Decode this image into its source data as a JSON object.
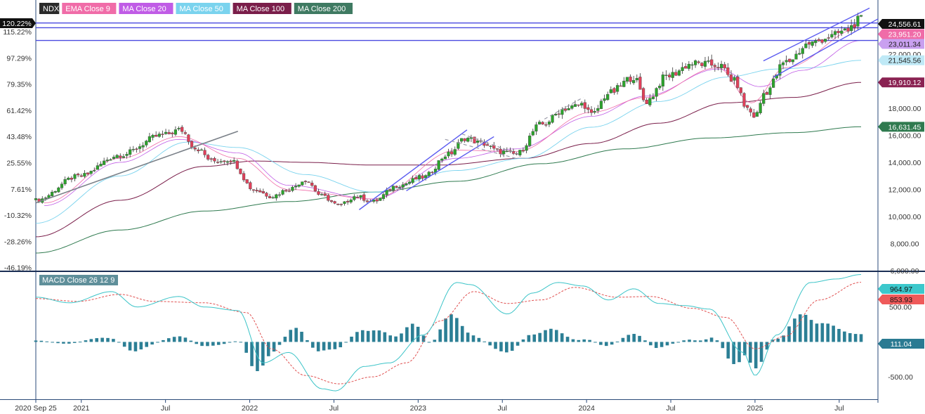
{
  "chart_data": {
    "type": "candlestick",
    "symbol": "NDX",
    "legend": [
      {
        "label": "NDX",
        "color": "#2b2b2b"
      },
      {
        "label": "EMA Close 9",
        "color": "#f06ca8"
      },
      {
        "label": "MA Close 20",
        "color": "#c05ce6"
      },
      {
        "label": "MA Close 50",
        "color": "#7ad3ee"
      },
      {
        "label": "MA Close 100",
        "color": "#7a1e4a"
      },
      {
        "label": "MA Close 200",
        "color": "#3f7a62"
      }
    ],
    "x_labels": [
      "2020 Sep 25",
      "2021",
      "Jul",
      "2022",
      "Jul",
      "2023",
      "Jul",
      "2024",
      "Jul",
      "2025",
      "Jul"
    ],
    "price_axis": {
      "ticks": [
        "6,000.00",
        "8,000.00",
        "10,000.00",
        "12,000.00",
        "14,000.00",
        "16,000.00",
        "18,000.00",
        "22,000.00"
      ],
      "range": [
        6000,
        26000
      ]
    },
    "percent_axis": {
      "ticks": [
        "115.22%",
        "97.29%",
        "79.35%",
        "61.42%",
        "43.48%",
        "25.55%",
        "7.61%",
        "-10.32%",
        "-28.26%",
        "-46.19%"
      ],
      "current": "120.22%"
    },
    "price_markers": [
      {
        "label": "24,556.61",
        "series": "Close",
        "bg": "#111111",
        "fg": "#ffffff"
      },
      {
        "label": "23,951.20",
        "series": "EMA Close 9",
        "bg": "#f06ca8",
        "fg": "#ffffff"
      },
      {
        "label": "23,011.34",
        "series": "MA Close 20",
        "bg": "#c9a0f0",
        "fg": "#222222"
      },
      {
        "label": "21,545.56",
        "series": "MA Close 50",
        "bg": "#bfe9f6",
        "fg": "#222222"
      },
      {
        "label": "19,910.12",
        "series": "MA Close 100",
        "bg": "#8a2252",
        "fg": "#ffffff"
      },
      {
        "label": "16,631.45",
        "series": "MA Close 200",
        "bg": "#2f7a4f",
        "fg": "#ffffff"
      }
    ],
    "horizontal_levels": [
      24300,
      23951.2,
      23011.34
    ],
    "close_anchors": [
      {
        "t": 0.0,
        "v": 11200
      },
      {
        "t": 0.25,
        "v": 12950
      },
      {
        "t": 0.5,
        "v": 14550
      },
      {
        "t": 0.75,
        "v": 16000
      },
      {
        "t": 0.86,
        "v": 16400
      },
      {
        "t": 0.95,
        "v": 15050
      },
      {
        "t": 1.05,
        "v": 14100
      },
      {
        "t": 1.15,
        "v": 14200
      },
      {
        "t": 1.3,
        "v": 11950
      },
      {
        "t": 1.4,
        "v": 11500
      },
      {
        "t": 1.5,
        "v": 12000
      },
      {
        "t": 1.6,
        "v": 12700
      },
      {
        "t": 1.7,
        "v": 11500
      },
      {
        "t": 1.8,
        "v": 10800
      },
      {
        "t": 1.9,
        "v": 11500
      },
      {
        "t": 2.0,
        "v": 11100
      },
      {
        "t": 2.15,
        "v": 12300
      },
      {
        "t": 2.3,
        "v": 12900
      },
      {
        "t": 2.45,
        "v": 14600
      },
      {
        "t": 2.55,
        "v": 15800
      },
      {
        "t": 2.65,
        "v": 15400
      },
      {
        "t": 2.75,
        "v": 14800
      },
      {
        "t": 2.85,
        "v": 14600
      },
      {
        "t": 3.0,
        "v": 16800
      },
      {
        "t": 3.15,
        "v": 18000
      },
      {
        "t": 3.25,
        "v": 18300
      },
      {
        "t": 3.3,
        "v": 17500
      },
      {
        "t": 3.4,
        "v": 19100
      },
      {
        "t": 3.55,
        "v": 20300
      },
      {
        "t": 3.62,
        "v": 18500
      },
      {
        "t": 3.75,
        "v": 20400
      },
      {
        "t": 3.9,
        "v": 21300
      },
      {
        "t": 4.05,
        "v": 21200
      },
      {
        "t": 4.15,
        "v": 20000
      },
      {
        "t": 4.22,
        "v": 18000
      },
      {
        "t": 4.27,
        "v": 17400
      },
      {
        "t": 4.33,
        "v": 19200
      },
      {
        "t": 4.45,
        "v": 21400
      },
      {
        "t": 4.6,
        "v": 22800
      },
      {
        "t": 4.72,
        "v": 23300
      },
      {
        "t": 4.8,
        "v": 23700
      },
      {
        "t": 4.9,
        "v": 24556.61
      }
    ],
    "ma_curves": {
      "EMA Close 9": {
        "color": "#f06ca8",
        "width": 0.8,
        "pts": [
          [
            0.05,
            11000
          ],
          [
            0.5,
            14300
          ],
          [
            0.85,
            15900
          ],
          [
            1.2,
            14300
          ],
          [
            1.5,
            12000
          ],
          [
            2.0,
            11300
          ],
          [
            2.5,
            14900
          ],
          [
            2.85,
            14800
          ],
          [
            3.3,
            17700
          ],
          [
            3.62,
            18800
          ],
          [
            4.05,
            21000
          ],
          [
            4.25,
            18400
          ],
          [
            4.45,
            21000
          ],
          [
            4.9,
            23951
          ]
        ]
      },
      "MA Close 20": {
        "color": "#c05ce6",
        "width": 0.8,
        "pts": [
          [
            0.05,
            10800
          ],
          [
            0.5,
            14000
          ],
          [
            0.85,
            15700
          ],
          [
            1.2,
            14700
          ],
          [
            1.5,
            12300
          ],
          [
            2.0,
            11300
          ],
          [
            2.5,
            14300
          ],
          [
            2.85,
            15000
          ],
          [
            3.3,
            17400
          ],
          [
            3.62,
            18900
          ],
          [
            4.05,
            20900
          ],
          [
            4.3,
            19600
          ],
          [
            4.55,
            20800
          ],
          [
            4.9,
            23011
          ]
        ]
      },
      "MA Close 50": {
        "color": "#7ad3ee",
        "width": 0.9,
        "pts": [
          [
            0.0,
            9500
          ],
          [
            0.5,
            13000
          ],
          [
            0.9,
            15500
          ],
          [
            1.2,
            15100
          ],
          [
            1.6,
            13100
          ],
          [
            2.0,
            11800
          ],
          [
            2.5,
            13400
          ],
          [
            2.9,
            14300
          ],
          [
            3.3,
            16600
          ],
          [
            3.7,
            18500
          ],
          [
            4.1,
            20300
          ],
          [
            4.4,
            20900
          ],
          [
            4.6,
            21000
          ],
          [
            4.9,
            21545
          ]
        ]
      },
      "MA Close 100": {
        "color": "#7a1e4a",
        "width": 1.0,
        "pts": [
          [
            0.0,
            8500
          ],
          [
            0.5,
            11200
          ],
          [
            1.0,
            13700
          ],
          [
            1.3,
            14100
          ],
          [
            1.6,
            14000
          ],
          [
            2.0,
            13800
          ],
          [
            2.4,
            13800
          ],
          [
            2.9,
            14300
          ],
          [
            3.3,
            15400
          ],
          [
            3.7,
            16900
          ],
          [
            4.1,
            18400
          ],
          [
            4.5,
            18800
          ],
          [
            4.9,
            19910
          ]
        ]
      },
      "MA Close 200": {
        "color": "#2f7a4f",
        "width": 1.0,
        "pts": [
          [
            0.0,
            7300
          ],
          [
            0.5,
            9000
          ],
          [
            1.0,
            10400
          ],
          [
            1.5,
            11100
          ],
          [
            2.0,
            11800
          ],
          [
            2.5,
            12600
          ],
          [
            3.0,
            13900
          ],
          [
            3.5,
            15000
          ],
          [
            4.0,
            15800
          ],
          [
            4.5,
            16200
          ],
          [
            4.9,
            16631
          ]
        ]
      }
    },
    "drawn_trendlines": [
      {
        "from": [
          0.0,
          11000
        ],
        "to": [
          1.2,
          16300
        ],
        "color": "#7a8088",
        "width": 1.6,
        "dash": false
      },
      {
        "from": [
          1.92,
          10500
        ],
        "to": [
          2.56,
          16400
        ],
        "color": "#5a5af0",
        "width": 1.4,
        "dash": false
      },
      {
        "from": [
          2.2,
          11900
        ],
        "to": [
          2.72,
          15900
        ],
        "color": "#5a5af0",
        "width": 1.4,
        "dash": false
      },
      {
        "from": [
          2.43,
          15700
        ],
        "to": [
          2.85,
          14300
        ],
        "color": "#9a9aa8",
        "width": 1.2,
        "dash": true
      },
      {
        "from": [
          2.53,
          16100
        ],
        "to": [
          2.87,
          14600
        ],
        "color": "#9a9aa8",
        "width": 1.2,
        "dash": true
      },
      {
        "from": [
          3.02,
          17200
        ],
        "to": [
          3.25,
          18800
        ],
        "color": "#9a9aa8",
        "width": 1.2,
        "dash": true
      },
      {
        "from": [
          4.32,
          21500
        ],
        "to": [
          4.95,
          25400
        ],
        "color": "#5a5af0",
        "width": 1.4,
        "dash": false
      },
      {
        "from": [
          4.38,
          20300
        ],
        "to": [
          5.0,
          24600
        ],
        "color": "#5a5af0",
        "width": 1.4,
        "dash": false
      }
    ],
    "macd": {
      "label": "MACD Close 26 12 9",
      "ticks": [
        "500.00",
        "0",
        "-500.00"
      ],
      "range": [
        -820,
        1000
      ],
      "macd_value": "964.97",
      "signal_value": "853.93",
      "hist_value": "111.04",
      "macd_color": "#3cc4c8",
      "signal_color": "#e05050",
      "hist_color": "#2c7f95",
      "macd_anchors": [
        {
          "t": 0.0,
          "v": 640
        },
        {
          "t": 0.2,
          "v": 560
        },
        {
          "t": 0.45,
          "v": 720
        },
        {
          "t": 0.6,
          "v": 500
        },
        {
          "t": 0.85,
          "v": 650
        },
        {
          "t": 1.0,
          "v": 500
        },
        {
          "t": 1.2,
          "v": 450
        },
        {
          "t": 1.35,
          "v": -300
        },
        {
          "t": 1.5,
          "v": -150
        },
        {
          "t": 1.7,
          "v": -670
        },
        {
          "t": 1.78,
          "v": -700
        },
        {
          "t": 1.95,
          "v": -350
        },
        {
          "t": 2.1,
          "v": -300
        },
        {
          "t": 2.3,
          "v": 100
        },
        {
          "t": 2.5,
          "v": 850
        },
        {
          "t": 2.58,
          "v": 820
        },
        {
          "t": 2.8,
          "v": 400
        },
        {
          "t": 2.95,
          "v": 700
        },
        {
          "t": 3.1,
          "v": 850
        },
        {
          "t": 3.25,
          "v": 800
        },
        {
          "t": 3.4,
          "v": 600
        },
        {
          "t": 3.55,
          "v": 760
        },
        {
          "t": 3.7,
          "v": 550
        },
        {
          "t": 3.85,
          "v": 520
        },
        {
          "t": 4.0,
          "v": 470
        },
        {
          "t": 4.2,
          "v": -150
        },
        {
          "t": 4.27,
          "v": -480
        },
        {
          "t": 4.4,
          "v": 100
        },
        {
          "t": 4.6,
          "v": 850
        },
        {
          "t": 4.75,
          "v": 900
        },
        {
          "t": 4.9,
          "v": 965
        }
      ],
      "signal_anchors": [
        {
          "t": 0.0,
          "v": 620
        },
        {
          "t": 0.25,
          "v": 580
        },
        {
          "t": 0.5,
          "v": 680
        },
        {
          "t": 0.7,
          "v": 580
        },
        {
          "t": 1.0,
          "v": 560
        },
        {
          "t": 1.25,
          "v": 420
        },
        {
          "t": 1.4,
          "v": -100
        },
        {
          "t": 1.6,
          "v": -480
        },
        {
          "t": 1.8,
          "v": -600
        },
        {
          "t": 2.0,
          "v": -500
        },
        {
          "t": 2.2,
          "v": -300
        },
        {
          "t": 2.4,
          "v": 300
        },
        {
          "t": 2.6,
          "v": 720
        },
        {
          "t": 2.8,
          "v": 550
        },
        {
          "t": 3.0,
          "v": 600
        },
        {
          "t": 3.2,
          "v": 780
        },
        {
          "t": 3.45,
          "v": 640
        },
        {
          "t": 3.65,
          "v": 650
        },
        {
          "t": 3.9,
          "v": 480
        },
        {
          "t": 4.1,
          "v": 350
        },
        {
          "t": 4.27,
          "v": -100
        },
        {
          "t": 4.45,
          "v": 80
        },
        {
          "t": 4.65,
          "v": 600
        },
        {
          "t": 4.9,
          "v": 854
        }
      ]
    }
  }
}
